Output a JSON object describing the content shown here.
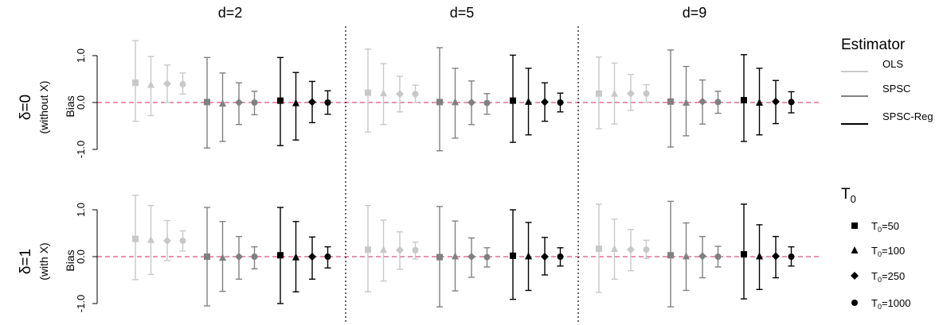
{
  "chart_data": {
    "type": "scatter",
    "subtype": "point-with-error-bars",
    "columns": [
      "d=2",
      "d=5",
      "d=9"
    ],
    "rows": [
      {
        "label": "δ=0",
        "sublabel": "(without X)"
      },
      {
        "label": "δ=1",
        "sublabel": "(with X)"
      }
    ],
    "ylabel": "Bias",
    "ylim": [
      -1.0,
      1.0
    ],
    "yticks": [
      "1.0",
      "0.0",
      "-1.0"
    ],
    "reference_line": 0,
    "legend": {
      "estimator_title": "Estimator",
      "estimators": [
        {
          "name": "OLS",
          "color": "#c8c8c8"
        },
        {
          "name": "SPSC",
          "color": "#808080"
        },
        {
          "name": "SPSC-Reg",
          "color": "#000000"
        }
      ],
      "t0_title": "T",
      "t0_title_sub": "0",
      "t0_entries": [
        {
          "prefix": "T",
          "sub": "0",
          "suffix": "=50",
          "shape": "square"
        },
        {
          "prefix": "T",
          "sub": "0",
          "suffix": "=100",
          "shape": "triangle"
        },
        {
          "prefix": "T",
          "sub": "0",
          "suffix": "=250",
          "shape": "diamond"
        },
        {
          "prefix": "T",
          "sub": "0",
          "suffix": "=1000",
          "shape": "circle"
        }
      ]
    },
    "series": [
      {
        "row": 0,
        "col": 0,
        "estimator": "OLS",
        "points": [
          [
            0.42,
            -0.4,
            1.32
          ],
          [
            0.38,
            -0.28,
            0.98
          ],
          [
            0.4,
            0.0,
            0.8
          ],
          [
            0.39,
            0.18,
            0.63
          ]
        ]
      },
      {
        "row": 0,
        "col": 0,
        "estimator": "SPSC",
        "points": [
          [
            0.01,
            -0.97,
            0.96
          ],
          [
            -0.02,
            -0.83,
            0.63
          ],
          [
            0.0,
            -0.47,
            0.42
          ],
          [
            0.0,
            -0.26,
            0.24
          ]
        ]
      },
      {
        "row": 0,
        "col": 0,
        "estimator": "SPSC-Reg",
        "points": [
          [
            0.04,
            -0.92,
            0.96
          ],
          [
            -0.01,
            -0.8,
            0.64
          ],
          [
            0.01,
            -0.43,
            0.45
          ],
          [
            0.0,
            -0.25,
            0.25
          ]
        ]
      },
      {
        "row": 0,
        "col": 1,
        "estimator": "OLS",
        "points": [
          [
            0.21,
            -0.63,
            1.14
          ],
          [
            0.2,
            -0.47,
            0.83
          ],
          [
            0.18,
            -0.2,
            0.56
          ],
          [
            0.18,
            0.0,
            0.37
          ]
        ]
      },
      {
        "row": 0,
        "col": 1,
        "estimator": "SPSC",
        "points": [
          [
            0.01,
            -1.03,
            1.17
          ],
          [
            0.01,
            -0.76,
            0.73
          ],
          [
            0.0,
            -0.47,
            0.46
          ],
          [
            -0.01,
            -0.25,
            0.19
          ]
        ]
      },
      {
        "row": 0,
        "col": 1,
        "estimator": "SPSC-Reg",
        "points": [
          [
            0.04,
            -0.85,
            1.01
          ],
          [
            0.02,
            -0.69,
            0.73
          ],
          [
            0.01,
            -0.4,
            0.42
          ],
          [
            0.0,
            -0.2,
            0.2
          ]
        ]
      },
      {
        "row": 0,
        "col": 2,
        "estimator": "OLS",
        "points": [
          [
            0.19,
            -0.56,
            0.97
          ],
          [
            0.19,
            -0.46,
            0.84
          ],
          [
            0.19,
            -0.17,
            0.6
          ],
          [
            0.19,
            0.0,
            0.38
          ]
        ]
      },
      {
        "row": 0,
        "col": 2,
        "estimator": "SPSC",
        "points": [
          [
            0.02,
            -0.95,
            1.12
          ],
          [
            0.0,
            -0.71,
            0.77
          ],
          [
            0.02,
            -0.46,
            0.48
          ],
          [
            0.01,
            -0.23,
            0.24
          ]
        ]
      },
      {
        "row": 0,
        "col": 2,
        "estimator": "SPSC-Reg",
        "points": [
          [
            0.05,
            -0.83,
            1.02
          ],
          [
            0.0,
            -0.69,
            0.73
          ],
          [
            0.02,
            -0.45,
            0.47
          ],
          [
            0.01,
            -0.22,
            0.23
          ]
        ]
      },
      {
        "row": 1,
        "col": 0,
        "estimator": "OLS",
        "points": [
          [
            0.38,
            -0.49,
            1.31
          ],
          [
            0.36,
            -0.38,
            1.09
          ],
          [
            0.34,
            -0.08,
            0.77
          ],
          [
            0.34,
            0.12,
            0.55
          ]
        ]
      },
      {
        "row": 1,
        "col": 0,
        "estimator": "SPSC",
        "points": [
          [
            0.0,
            -1.05,
            1.05
          ],
          [
            -0.02,
            -0.74,
            0.75
          ],
          [
            0.0,
            -0.48,
            0.43
          ],
          [
            0.0,
            -0.26,
            0.21
          ]
        ]
      },
      {
        "row": 1,
        "col": 0,
        "estimator": "SPSC-Reg",
        "points": [
          [
            0.03,
            -1.0,
            1.05
          ],
          [
            -0.01,
            -0.75,
            0.75
          ],
          [
            0.0,
            -0.48,
            0.42
          ],
          [
            0.0,
            -0.24,
            0.21
          ]
        ]
      },
      {
        "row": 1,
        "col": 1,
        "estimator": "OLS",
        "points": [
          [
            0.15,
            -0.75,
            1.09
          ],
          [
            0.15,
            -0.52,
            0.78
          ],
          [
            0.14,
            -0.27,
            0.53
          ],
          [
            0.14,
            -0.05,
            0.31
          ]
        ]
      },
      {
        "row": 1,
        "col": 1,
        "estimator": "SPSC",
        "points": [
          [
            -0.01,
            -1.07,
            1.07
          ],
          [
            0.01,
            -0.73,
            0.76
          ],
          [
            0.0,
            -0.44,
            0.4
          ],
          [
            -0.01,
            -0.22,
            0.19
          ]
        ]
      },
      {
        "row": 1,
        "col": 1,
        "estimator": "SPSC-Reg",
        "points": [
          [
            0.02,
            -0.91,
            1.0
          ],
          [
            0.01,
            -0.72,
            0.73
          ],
          [
            0.0,
            -0.39,
            0.41
          ],
          [
            0.0,
            -0.2,
            0.19
          ]
        ]
      },
      {
        "row": 1,
        "col": 2,
        "estimator": "OLS",
        "points": [
          [
            0.17,
            -0.76,
            1.12
          ],
          [
            0.17,
            -0.48,
            0.8
          ],
          [
            0.15,
            -0.3,
            0.58
          ],
          [
            0.15,
            -0.04,
            0.35
          ]
        ]
      },
      {
        "row": 1,
        "col": 2,
        "estimator": "SPSC",
        "points": [
          [
            0.03,
            -1.07,
            1.18
          ],
          [
            0.01,
            -0.72,
            0.72
          ],
          [
            0.01,
            -0.45,
            0.43
          ],
          [
            0.0,
            -0.22,
            0.22
          ]
        ]
      },
      {
        "row": 1,
        "col": 2,
        "estimator": "SPSC-Reg",
        "points": [
          [
            0.05,
            -0.9,
            1.12
          ],
          [
            0.01,
            -0.7,
            0.68
          ],
          [
            0.01,
            -0.45,
            0.43
          ],
          [
            0.0,
            -0.2,
            0.21
          ]
        ]
      }
    ]
  }
}
